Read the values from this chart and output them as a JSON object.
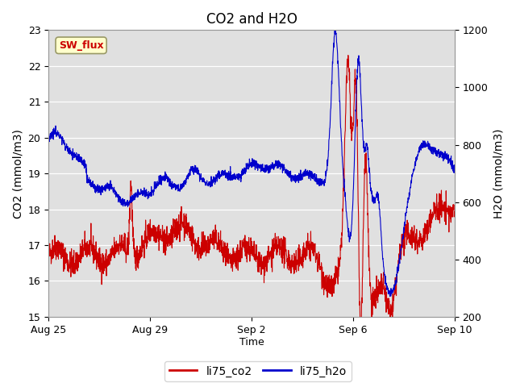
{
  "title": "CO2 and H2O",
  "xlabel": "Time",
  "ylabel_left": "CO2 (mmol/m3)",
  "ylabel_right": "H2O (mmol/m3)",
  "ylim_left": [
    15.0,
    23.0
  ],
  "ylim_right": [
    200,
    1200
  ],
  "yticks_left": [
    15.0,
    16.0,
    17.0,
    18.0,
    19.0,
    20.0,
    21.0,
    22.0,
    23.0
  ],
  "yticks_right": [
    200,
    400,
    600,
    800,
    1000,
    1200
  ],
  "xtick_dates": [
    "Aug 25",
    "Aug 29",
    "Sep 2",
    "Sep 6",
    "Sep 10"
  ],
  "xtick_offsets_days": [
    0,
    4,
    8,
    12,
    16
  ],
  "co2_color": "#cc0000",
  "h2o_color": "#0000cc",
  "plot_bg_color": "#e0e0e0",
  "sw_flux_box_color": "#ffffcc",
  "sw_flux_border_color": "#999966",
  "sw_flux_text_color": "#cc0000",
  "legend_co2_label": "li75_co2",
  "legend_h2o_label": "li75_h2o",
  "line_width": 0.8
}
